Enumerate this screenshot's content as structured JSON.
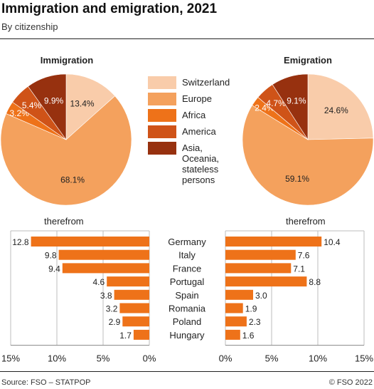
{
  "header": {
    "title": "Immigration and emigration, 2021",
    "subtitle": "By citizenship"
  },
  "legend": [
    {
      "label": "Switzerland",
      "color": "#f9ccaa"
    },
    {
      "label": "Europe",
      "color": "#f4a15d"
    },
    {
      "label": "Africa",
      "color": "#ee7219"
    },
    {
      "label": "America",
      "color": "#cf5318"
    },
    {
      "label": "Asia, Oceania, stateless persons",
      "color": "#97310f"
    }
  ],
  "therefrom_left": "therefrom",
  "therefrom_right": "therefrom",
  "footer": {
    "source": "Source: FSO – STATPOP",
    "copyright": "© FSO 2022"
  },
  "chart_data": [
    {
      "type": "pie",
      "title": "Immigration",
      "labels": [
        "Switzerland",
        "Europe",
        "Africa",
        "America",
        "Asia, Oceania, stateless persons"
      ],
      "values": [
        13.4,
        68.1,
        3.2,
        5.4,
        9.9
      ],
      "value_labels": [
        "13.4%",
        "68.1%",
        "3.2%",
        "5.4%",
        "9.9%"
      ]
    },
    {
      "type": "pie",
      "title": "Emigration",
      "labels": [
        "Switzerland",
        "Europe",
        "Africa",
        "America",
        "Asia, Oceania, stateless persons"
      ],
      "values": [
        24.6,
        59.1,
        2.4,
        4.7,
        9.1
      ],
      "value_labels": [
        "24.6%",
        "59.1%",
        "2.4%",
        "4.7%",
        "9.1%"
      ]
    },
    {
      "type": "bar",
      "orientation": "horizontal",
      "direction": "right-to-left",
      "categories": [
        "Germany",
        "Italy",
        "France",
        "Portugal",
        "Spain",
        "Romania",
        "Poland",
        "Hungary"
      ],
      "values": [
        12.8,
        9.8,
        9.4,
        4.6,
        3.8,
        3.2,
        2.9,
        1.7
      ],
      "value_labels": [
        "12.8",
        "9.8",
        "9.4",
        "4.6",
        "3.8",
        "3.2",
        "2.9",
        "1.7"
      ],
      "xlim": [
        0,
        15
      ],
      "ticks": [
        "15%",
        "10%",
        "5%",
        "0%"
      ],
      "color": "#ee7219"
    },
    {
      "type": "bar",
      "orientation": "horizontal",
      "direction": "left-to-right",
      "categories": [
        "Germany",
        "Italy",
        "France",
        "Portugal",
        "Spain",
        "Romania",
        "Poland",
        "Hungary"
      ],
      "values": [
        10.4,
        7.6,
        7.1,
        8.8,
        3.0,
        1.9,
        2.3,
        1.6
      ],
      "value_labels": [
        "10.4",
        "7.6",
        "7.1",
        "8.8",
        "3.0",
        "1.9",
        "2.3",
        "1.6"
      ],
      "xlim": [
        0,
        15
      ],
      "ticks": [
        "0%",
        "5%",
        "10%",
        "15%"
      ],
      "color": "#ee7219"
    }
  ]
}
